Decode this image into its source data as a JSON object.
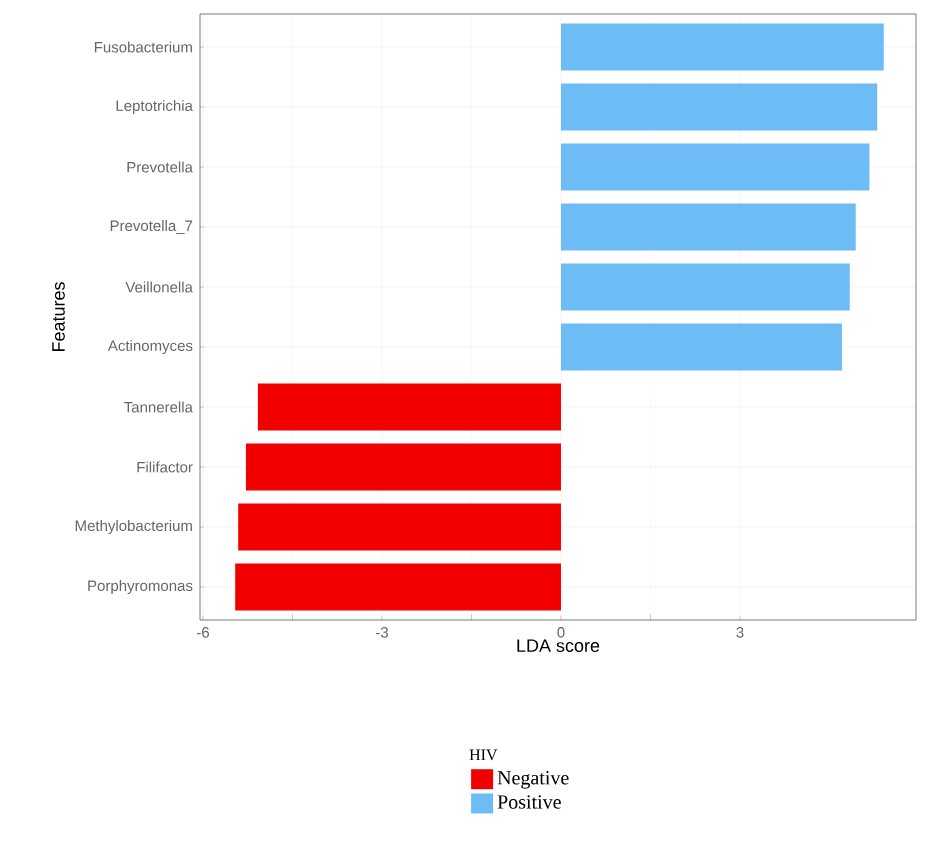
{
  "chart_data": {
    "type": "bar",
    "orientation": "horizontal",
    "xlabel": "LDA score",
    "ylabel": "Features",
    "legend_title": "HIV",
    "legend": "bottom",
    "grid": true,
    "categories": [
      "Fusobacterium",
      "Leptotrichia",
      "Prevotella",
      "Prevotella_7",
      "Veillonella",
      "Actinomyces",
      "Tannerella",
      "Filifactor",
      "Methylobacterium",
      "Porphyromonas"
    ],
    "series": [
      {
        "name": "Negative",
        "color": "#f20000",
        "values": [
          null,
          null,
          null,
          null,
          null,
          null,
          -5.08,
          -5.28,
          -5.41,
          -5.46
        ]
      },
      {
        "name": "Positive",
        "color": "#6dbcf6",
        "values": [
          5.41,
          5.3,
          5.17,
          4.94,
          4.84,
          4.71,
          null,
          null,
          null,
          null
        ]
      }
    ],
    "xlim": [
      -6.05,
      5.95
    ],
    "xticks": [
      -6,
      -3,
      0,
      3
    ]
  }
}
